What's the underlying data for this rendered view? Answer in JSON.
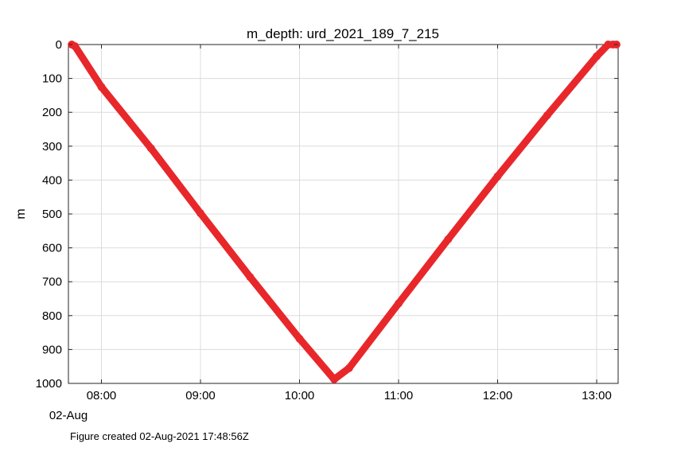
{
  "chart_data": {
    "type": "line",
    "title": "m_depth: urd_2021_189_7_215",
    "xlabel": "",
    "ylabel": "m",
    "x_date_label": "02-Aug",
    "x_ticks": [
      "08:00",
      "09:00",
      "10:00",
      "11:00",
      "12:00",
      "13:00"
    ],
    "y_ticks": [
      0,
      100,
      200,
      300,
      400,
      500,
      600,
      700,
      800,
      900,
      1000
    ],
    "xlim": [
      "07:40",
      "13:13"
    ],
    "ylim": [
      0,
      1000
    ],
    "y_reversed": true,
    "grid": true,
    "series": [
      {
        "color": "#e8272b",
        "x": [
          "07:42",
          "07:44",
          "08:00",
          "08:30",
          "09:00",
          "09:30",
          "10:00",
          "10:21",
          "10:30",
          "11:00",
          "11:30",
          "12:00",
          "12:30",
          "13:00",
          "13:07",
          "13:10",
          "13:12"
        ],
        "y": [
          0,
          5,
          125,
          306,
          498,
          686,
          868,
          988,
          955,
          764,
          575,
          389,
          209,
          35,
          0,
          0,
          0
        ]
      }
    ]
  },
  "footer": {
    "text": "Figure created 02-Aug-2021 17:48:56Z"
  }
}
